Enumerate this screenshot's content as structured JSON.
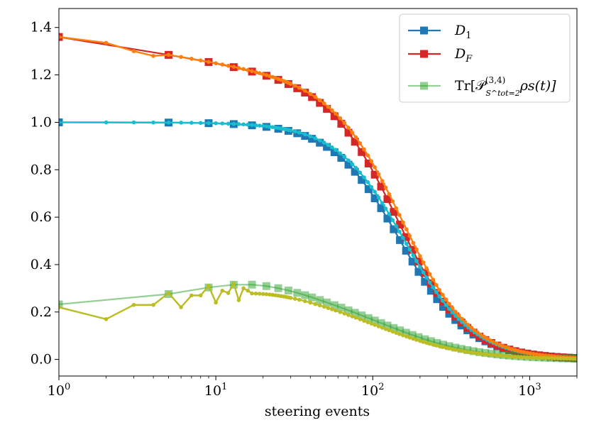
{
  "chart_data": {
    "type": "line",
    "title": "",
    "xlabel": "steering events",
    "ylabel": "",
    "xscale": "log",
    "xlim": [
      1,
      2000
    ],
    "ylim": [
      -0.07,
      1.48
    ],
    "x_ticks": [
      {
        "value": 1,
        "base": "10",
        "exp": "0"
      },
      {
        "value": 10,
        "base": "10",
        "exp": "1"
      },
      {
        "value": 100,
        "base": "10",
        "exp": "2"
      },
      {
        "value": 1000,
        "base": "10",
        "exp": "3"
      }
    ],
    "y_ticks": [
      {
        "value": 0.0,
        "label": "0.0"
      },
      {
        "value": 0.2,
        "label": "0.2"
      },
      {
        "value": 0.4,
        "label": "0.4"
      },
      {
        "value": 0.6,
        "label": "0.6"
      },
      {
        "value": 0.8,
        "label": "0.8"
      },
      {
        "value": 1.0,
        "label": "1.0"
      },
      {
        "value": 1.2,
        "label": "1.2"
      },
      {
        "value": 1.4,
        "label": "1.4"
      }
    ],
    "legend": {
      "position": "top-right",
      "entries": [
        {
          "series": "D1",
          "label_main": "D",
          "label_sub": "1",
          "color": "#1f77b4"
        },
        {
          "series": "DF",
          "label_main": "D",
          "label_sub": "F",
          "color": "#d62728"
        },
        {
          "series": "Tr",
          "label_main": "Tr[𝒫",
          "label_sup": "(3,4)",
          "label_sub": "S^tot=2",
          "label_tail": "ρs(t)]",
          "color": "#2ca02c",
          "alpha": 0.5
        }
      ]
    },
    "series": [
      {
        "name": "D1",
        "role": "main",
        "color": "#1f77b4",
        "marker": "square",
        "curve": {
          "type": "sigmoid",
          "start": 1.0,
          "end": 0.0,
          "x_half": 150,
          "power": 2
        }
      },
      {
        "name": "D1 (unsteered)",
        "role": "companion",
        "color": "#17becf",
        "marker": "dot",
        "curve": {
          "type": "sigmoid",
          "start": 1.0,
          "end": 0.0,
          "x_half": 160,
          "power": 2
        }
      },
      {
        "name": "DF",
        "role": "main",
        "color": "#d62728",
        "marker": "square",
        "curve": {
          "type": "sigmoid_log",
          "start": 1.36,
          "end": 0.0,
          "x_half": 150,
          "power": 2,
          "slope": 0.106
        }
      },
      {
        "name": "DF (unsteered)",
        "role": "companion",
        "color": "#ff7f0e",
        "marker": "dot",
        "points_early": [
          [
            1,
            1.36
          ],
          [
            2,
            1.335
          ],
          [
            3,
            1.3
          ],
          [
            4,
            1.28
          ]
        ],
        "curve": {
          "type": "sigmoid_log",
          "start": 1.36,
          "end": 0.0,
          "x_half": 160,
          "power": 2,
          "slope": 0.106
        }
      },
      {
        "name": "Tr",
        "role": "main",
        "color": "#2ca02c",
        "marker": "square",
        "alpha": 0.5,
        "curve": {
          "type": "bump",
          "start": 0.22,
          "peak": 0.325,
          "x_peak": 17,
          "x_decay": 150,
          "power": 1.6
        }
      },
      {
        "name": "Tr (unsteered)",
        "role": "companion",
        "color": "#bcbd22",
        "marker": "dot",
        "points_early": [
          [
            1,
            0.22
          ],
          [
            2,
            0.17
          ],
          [
            3,
            0.23
          ],
          [
            4,
            0.23
          ],
          [
            5,
            0.28
          ],
          [
            6,
            0.22
          ],
          [
            7,
            0.27
          ],
          [
            8,
            0.27
          ],
          [
            9,
            0.31
          ],
          [
            10,
            0.24
          ],
          [
            11,
            0.29
          ],
          [
            12,
            0.28
          ],
          [
            13,
            0.32
          ],
          [
            14,
            0.25
          ],
          [
            15,
            0.3
          ],
          [
            16,
            0.29
          ]
        ],
        "curve": {
          "type": "bump",
          "start": 0.22,
          "peak": 0.29,
          "x_peak": 20,
          "x_decay": 130,
          "power": 1.6
        }
      }
    ]
  }
}
